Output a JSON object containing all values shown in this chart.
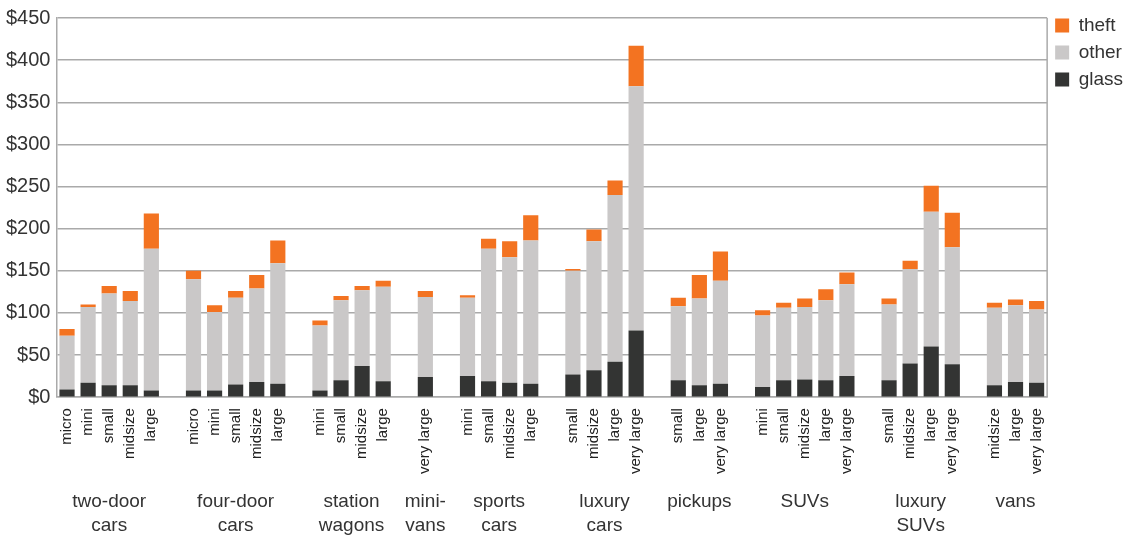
{
  "chart_data": {
    "type": "bar",
    "stacked": true,
    "categories": [
      "micro",
      "mini",
      "small",
      "midsize",
      "large",
      null,
      "micro",
      "mini",
      "small",
      "midsize",
      "large",
      null,
      "mini",
      "small",
      "midsize",
      "large",
      null,
      "very large",
      null,
      "mini",
      "small",
      "midsize",
      "large",
      null,
      "small",
      "midsize",
      "large",
      "very large",
      null,
      "small",
      "large",
      "very large",
      null,
      "mini",
      "small",
      "midsize",
      "large",
      "very large",
      null,
      "small",
      "midsize",
      "large",
      "very large",
      null,
      "midsize",
      "large",
      "very large"
    ],
    "series": [
      {
        "name": "glass",
        "color": "#333433",
        "values": [
          9,
          17,
          14,
          14,
          8,
          null,
          8,
          8,
          15,
          18,
          16,
          null,
          8,
          20,
          37,
          19,
          null,
          24,
          null,
          25,
          19,
          17,
          16,
          null,
          27,
          32,
          42,
          79,
          null,
          20,
          14,
          16,
          null,
          12,
          20,
          21,
          20,
          25,
          null,
          20,
          40,
          60,
          39,
          null,
          14,
          18,
          17
        ]
      },
      {
        "name": "other",
        "color": "#cac8c8",
        "values": [
          64,
          90,
          109,
          100,
          168,
          null,
          132,
          93,
          103,
          111,
          143,
          null,
          77,
          95,
          90,
          112,
          null,
          95,
          null,
          93,
          157,
          149,
          170,
          null,
          123,
          153,
          198,
          290,
          null,
          88,
          103,
          122,
          null,
          85,
          86,
          86,
          95,
          109,
          null,
          90,
          112,
          160,
          139,
          null,
          92,
          91,
          87
        ]
      },
      {
        "name": "theft",
        "color": "#f37321",
        "values": [
          8,
          3,
          9,
          12,
          42,
          null,
          10,
          8,
          8,
          16,
          27,
          null,
          6,
          5,
          5,
          7,
          null,
          7,
          null,
          3,
          12,
          19,
          30,
          null,
          2,
          14,
          17,
          48,
          null,
          10,
          28,
          35,
          null,
          6,
          6,
          10,
          13,
          14,
          null,
          7,
          10,
          31,
          41,
          null,
          6,
          7,
          10
        ]
      }
    ],
    "ylim": [
      0,
      450
    ],
    "yticks": [
      {
        "value": 0,
        "label": "$0"
      },
      {
        "value": 50,
        "label": "$50"
      },
      {
        "value": 100,
        "label": "$100"
      },
      {
        "value": 150,
        "label": "$150"
      },
      {
        "value": 200,
        "label": "$200"
      },
      {
        "value": 250,
        "label": "$250"
      },
      {
        "value": 300,
        "label": "$300"
      },
      {
        "value": 350,
        "label": "$350"
      },
      {
        "value": 400,
        "label": "$400"
      },
      {
        "value": 450,
        "label": "$450"
      }
    ],
    "grid": "y",
    "legend": "top right",
    "annotations": [
      "two-door cars",
      "four-door cars",
      "station wagons",
      "mini-vans",
      "sports cars",
      "luxury cars",
      "pickups",
      "SUVs",
      "luxury SUVs",
      "vans"
    ]
  }
}
